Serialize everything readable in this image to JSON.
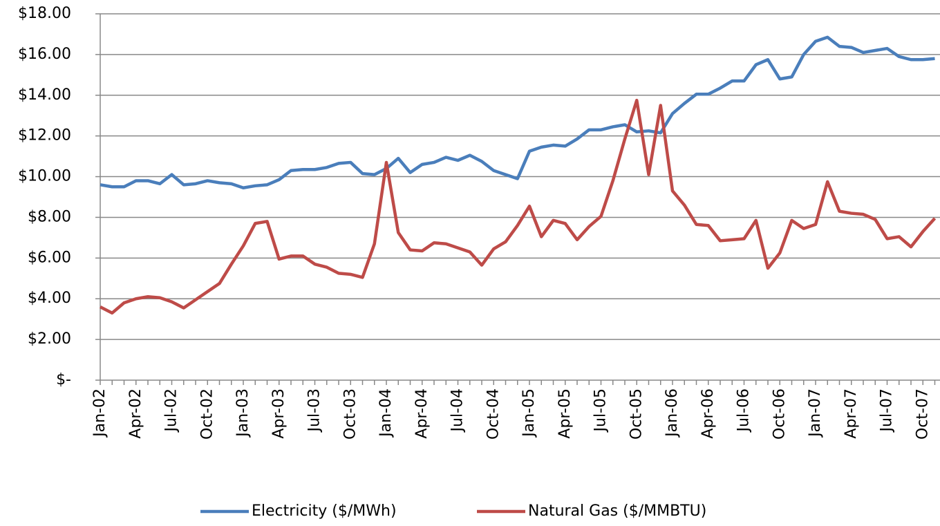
{
  "chart_data": {
    "type": "line",
    "categories": [
      "Jan-02",
      null,
      null,
      "Apr-02",
      null,
      null,
      "Jul-02",
      null,
      null,
      "Oct-02",
      null,
      null,
      "Jan-03",
      null,
      null,
      "Apr-03",
      null,
      null,
      "Jul-03",
      null,
      null,
      "Oct-03",
      null,
      null,
      "Jan-04",
      null,
      null,
      "Apr-04",
      null,
      null,
      "Jul-04",
      null,
      null,
      "Oct-04",
      null,
      null,
      "Jan-05",
      null,
      null,
      "Apr-05",
      null,
      null,
      "Jul-05",
      null,
      null,
      "Oct-05",
      null,
      null,
      "Jan-06",
      null,
      null,
      "Apr-06",
      null,
      null,
      "Jul-06",
      null,
      null,
      "Oct-06",
      null,
      null,
      "Jan-07",
      null,
      null,
      "Apr-07",
      null,
      null,
      "Jul-07",
      null,
      null,
      "Oct-07",
      null
    ],
    "series": [
      {
        "name": "Electricity ($/MWh)",
        "color": "#4a7ebb",
        "values": [
          9.6,
          9.5,
          9.5,
          9.8,
          9.8,
          9.65,
          10.1,
          9.6,
          9.65,
          9.8,
          9.7,
          9.65,
          9.45,
          9.55,
          9.6,
          9.85,
          10.3,
          10.35,
          10.35,
          10.45,
          10.65,
          10.7,
          10.15,
          10.1,
          10.4,
          10.9,
          10.2,
          10.6,
          10.7,
          10.95,
          10.8,
          11.05,
          10.75,
          10.3,
          10.1,
          9.9,
          11.25,
          11.45,
          11.55,
          11.5,
          11.85,
          12.3,
          12.3,
          12.45,
          12.55,
          12.2,
          12.25,
          12.15,
          13.1,
          13.6,
          14.05,
          14.05,
          14.35,
          14.7,
          14.7,
          15.5,
          15.75,
          14.8,
          14.9,
          16.0,
          16.65,
          16.85,
          16.4,
          16.35,
          16.1,
          16.2,
          16.3,
          15.9,
          15.75,
          15.75,
          15.8
        ]
      },
      {
        "name": "Natural Gas ($/MMBTU)",
        "color": "#be4b48",
        "values": [
          3.6,
          3.3,
          3.8,
          4.0,
          4.1,
          4.05,
          3.85,
          3.55,
          3.95,
          4.35,
          4.75,
          5.7,
          6.6,
          7.7,
          7.8,
          5.95,
          6.1,
          6.1,
          5.7,
          5.55,
          5.25,
          5.2,
          5.05,
          6.7,
          10.7,
          7.25,
          6.4,
          6.35,
          6.75,
          6.7,
          6.5,
          6.3,
          5.65,
          6.45,
          6.8,
          7.6,
          8.55,
          7.05,
          7.85,
          7.7,
          6.9,
          7.55,
          8.05,
          9.8,
          11.85,
          13.75,
          10.1,
          13.5,
          9.3,
          8.6,
          7.65,
          7.6,
          6.85,
          6.9,
          6.95,
          7.85,
          5.5,
          6.25,
          7.85,
          7.45,
          7.65,
          9.75,
          8.3,
          8.2,
          8.15,
          7.9,
          6.95,
          7.05,
          6.55,
          7.3,
          7.95
        ]
      }
    ],
    "ylim": [
      0,
      18
    ],
    "yticks": [
      {
        "value": 0,
        "label": "$-"
      },
      {
        "value": 2,
        "label": "$2.00"
      },
      {
        "value": 4,
        "label": "$4.00"
      },
      {
        "value": 6,
        "label": "$6.00"
      },
      {
        "value": 8,
        "label": "$8.00"
      },
      {
        "value": 10,
        "label": "$10.00"
      },
      {
        "value": 12,
        "label": "$12.00"
      },
      {
        "value": 14,
        "label": "$14.00"
      },
      {
        "value": 16,
        "label": "$16.00"
      },
      {
        "value": 18,
        "label": "$18.00"
      }
    ],
    "grid": true,
    "legend": "bottom"
  }
}
